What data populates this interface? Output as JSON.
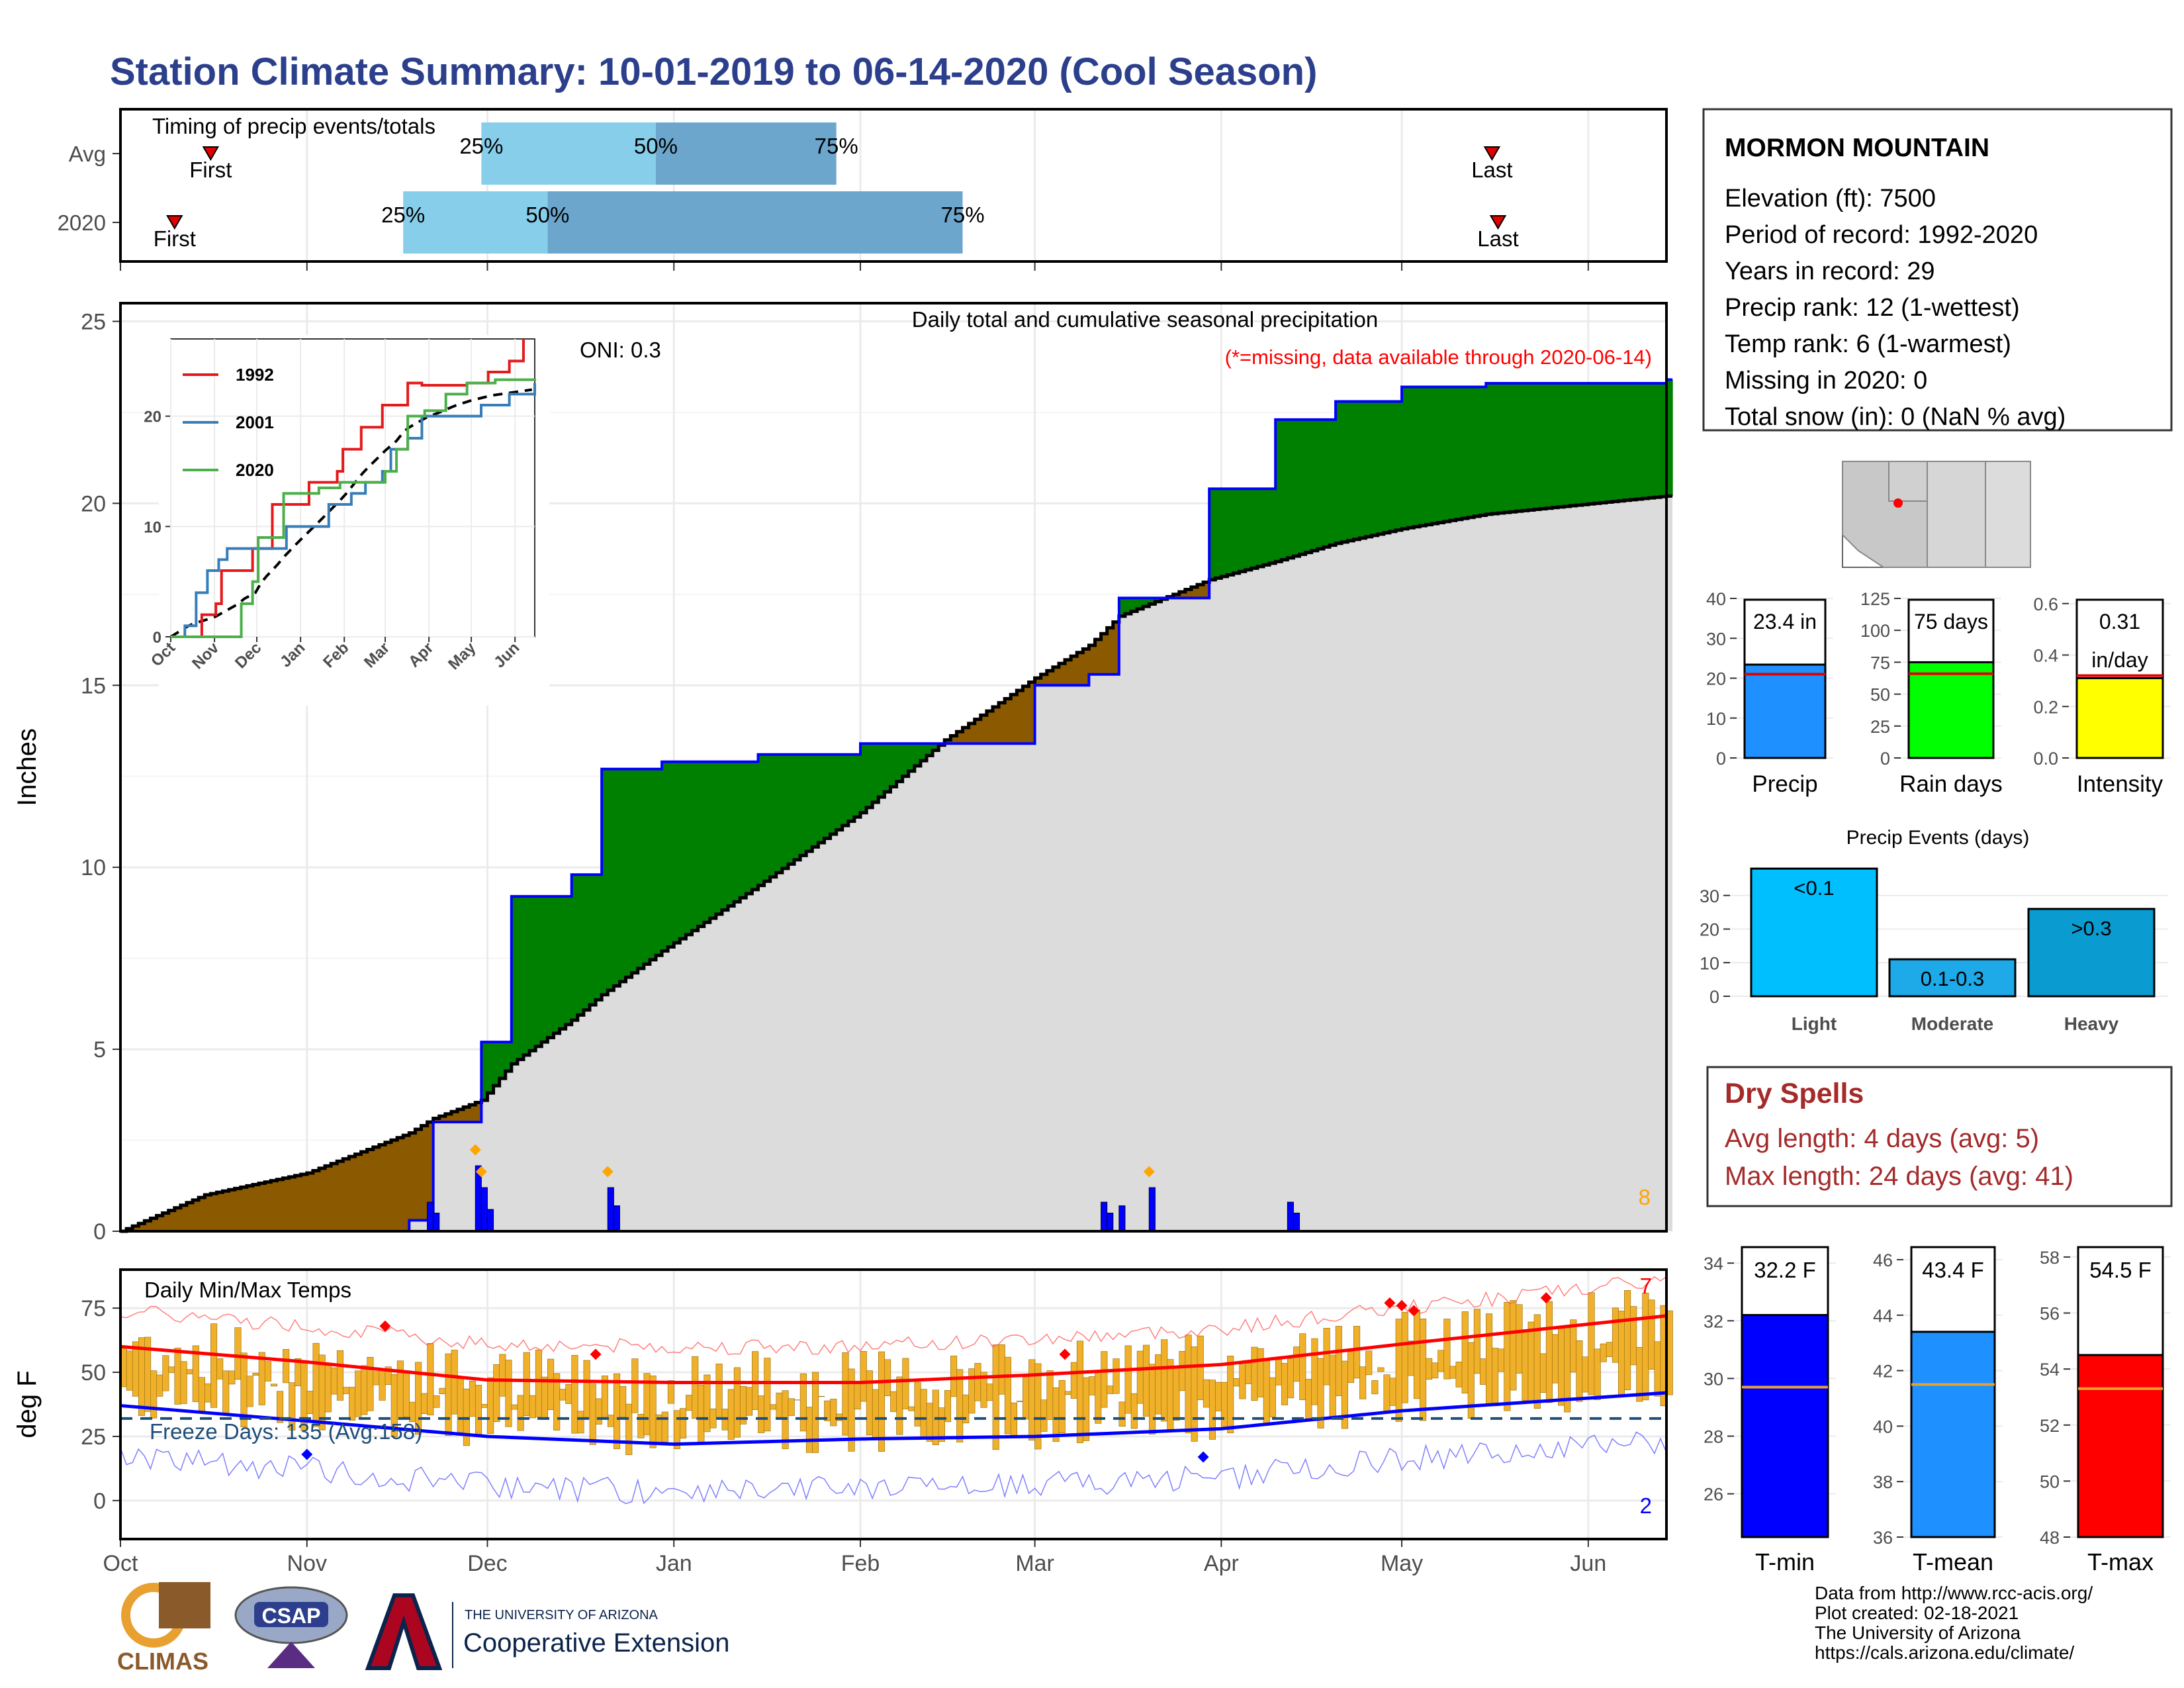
{
  "title": "Station Climate Summary: 10-01-2019 to 06-14-2020 (Cool Season)",
  "colors": {
    "title": "#2B3F8C",
    "precip_green": "#008000",
    "precip_brown": "#8B5A00",
    "normal_fill": "#DCDCDC",
    "obs_line": "#0000FF",
    "quartile_light": "#87CEEB",
    "quartile_dark": "#6CA6CD",
    "temp_bar": "#F0B02A",
    "tmax_line": "#FF0000",
    "tmin_line": "#0000FF",
    "dry_spell": "#A52A2A"
  },
  "timing": {
    "label": "Timing of precip events/totals",
    "rows": [
      {
        "name": "Avg",
        "first": "First",
        "last": "Last",
        "p25": "25%",
        "p50": "50%",
        "p75": "75%"
      },
      {
        "name": "2020",
        "first": "First",
        "last": "Last",
        "p25": "25%",
        "p50": "50%",
        "p75": "75%"
      }
    ]
  },
  "main": {
    "ylabel": "Inches",
    "oni": "ONI: 0.3",
    "caption": "Daily total and cumulative seasonal precipitation",
    "missing_note": "(*=missing, data available through 2020-06-14)",
    "corner_count": "8",
    "y_ticks": [
      "0",
      "5",
      "10",
      "15",
      "20",
      "25"
    ]
  },
  "inset": {
    "legend": [
      "1992",
      "2001",
      "2020"
    ],
    "y_ticks": [
      "0",
      "10",
      "20"
    ],
    "x_ticks": [
      "Oct",
      "Nov",
      "Dec",
      "Jan",
      "Feb",
      "Mar",
      "Apr",
      "May",
      "Jun"
    ]
  },
  "temp": {
    "label": "Daily Min/Max Temps",
    "ylabel": "deg F",
    "freeze": "Freeze Days: 135 (Avg:158)",
    "max_count": "7",
    "min_count": "2",
    "y_ticks": [
      "0",
      "25",
      "50",
      "75"
    ]
  },
  "x_months": [
    "Oct",
    "Nov",
    "Dec",
    "Jan",
    "Feb",
    "Mar",
    "Apr",
    "May",
    "Jun"
  ],
  "station": {
    "name": "MORMON MOUNTAIN",
    "lines": [
      "Elevation (ft): 7500",
      "Period of record: 1992-2020",
      "Years in record: 29",
      "Precip rank: 12 (1-wettest)",
      "Temp rank: 6 (1-warmest)",
      "Missing in 2020: 0",
      "Total snow (in): 0 (NaN % avg)"
    ]
  },
  "summary_bars": [
    {
      "label": "Precip",
      "value_text": "23.4 in",
      "ticks": [
        "0",
        "10",
        "20",
        "30",
        "40"
      ],
      "color": "#1E90FF"
    },
    {
      "label": "Rain days",
      "value_text": "75 days",
      "ticks": [
        "0",
        "25",
        "50",
        "75",
        "100",
        "125"
      ],
      "color": "#00FF00"
    },
    {
      "label": "Intensity",
      "value_text": "0.31",
      "value_unit": "in/day",
      "ticks": [
        "0.0",
        "0.2",
        "0.4",
        "0.6"
      ],
      "color": "#FFFF00"
    }
  ],
  "events": {
    "title": "Precip Events (days)",
    "y_ticks": [
      "0",
      "10",
      "20",
      "30"
    ],
    "bars": [
      {
        "category": "Light",
        "label": "<0.1",
        "color": "#00BFFF"
      },
      {
        "category": "Moderate",
        "label": "0.1-0.3",
        "color": "#1EA9E8"
      },
      {
        "category": "Heavy",
        "label": ">0.3",
        "color": "#0A9BD0"
      }
    ]
  },
  "dry": {
    "title": "Dry Spells",
    "avg": "Avg length: 4 days (avg: 5)",
    "max": "Max length: 24 days (avg: 41)"
  },
  "temp_bars": [
    {
      "label": "T-min",
      "value_text": "32.2 F",
      "ticks": [
        "26",
        "28",
        "30",
        "32",
        "34"
      ],
      "color": "#0000FF"
    },
    {
      "label": "T-mean",
      "value_text": "43.4 F",
      "ticks": [
        "36",
        "38",
        "40",
        "42",
        "44",
        "46"
      ],
      "color": "#1E90FF"
    },
    {
      "label": "T-max",
      "value_text": "54.5 F",
      "ticks": [
        "48",
        "50",
        "52",
        "54",
        "56",
        "58"
      ],
      "color": "#FF0000"
    }
  ],
  "footer": [
    "Data from http://www.rcc-acis.org/",
    "Plot created: 02-18-2021",
    "The University of Arizona",
    "https://cals.arizona.edu/climate/"
  ],
  "logos": {
    "climas": "CLIMAS",
    "csap": "CSAP",
    "ua_small": "THE UNIVERSITY OF ARIZONA",
    "ua_big": "Cooperative Extension"
  },
  "chart_data": [
    {
      "type": "line",
      "name": "cumulative precipitation",
      "x_unit": "date",
      "x": [
        "2019-10-01",
        "2019-10-15",
        "2019-11-01",
        "2019-11-18",
        "2019-11-22",
        "2019-11-30",
        "2019-12-05",
        "2019-12-15",
        "2019-12-20",
        "2019-12-30",
        "2020-01-15",
        "2020-02-01",
        "2020-02-15",
        "2020-03-01",
        "2020-03-10",
        "2020-03-15",
        "2020-03-30",
        "2020-04-10",
        "2020-04-20",
        "2020-05-01",
        "2020-05-15",
        "2020-06-14"
      ],
      "cumulative_2020": [
        0,
        0,
        0,
        0.3,
        3.0,
        5.2,
        9.2,
        9.8,
        12.7,
        12.9,
        13.1,
        13.4,
        13.4,
        15.0,
        15.3,
        17.4,
        20.4,
        22.3,
        22.8,
        23.2,
        23.3,
        23.4
      ],
      "cumulative_avg": [
        0,
        1.0,
        1.6,
        2.7,
        3.1,
        3.6,
        4.6,
        5.8,
        6.5,
        7.7,
        9.5,
        11.5,
        13.5,
        15.2,
        16.1,
        16.9,
        17.9,
        18.4,
        18.9,
        19.3,
        19.7,
        20.2
      ],
      "ylim": [
        0,
        25.5
      ],
      "ylabel": "Inches"
    },
    {
      "type": "bar",
      "name": "daily precipitation",
      "x": [
        "2019-11-21",
        "2019-11-22",
        "2019-11-29",
        "2019-11-30",
        "2019-12-01",
        "2019-12-21",
        "2019-12-22",
        "2020-03-12",
        "2020-03-13",
        "2020-03-15",
        "2020-03-20",
        "2020-04-12",
        "2020-04-13"
      ],
      "values": [
        0.8,
        0.5,
        1.8,
        1.2,
        0.6,
        1.2,
        0.7,
        0.8,
        0.5,
        0.7,
        1.2,
        0.8,
        0.5
      ]
    },
    {
      "type": "line",
      "name": "daily temperature",
      "x": [
        "2019-10-01",
        "2019-11-01",
        "2019-12-01",
        "2020-01-01",
        "2020-02-01",
        "2020-03-01",
        "2020-04-01",
        "2020-05-01",
        "2020-06-14"
      ],
      "avg_tmax": [
        60,
        54,
        47,
        46,
        46,
        49,
        53,
        61,
        72
      ],
      "avg_tmin": [
        37,
        31,
        25,
        22,
        24,
        25,
        28,
        35,
        42
      ],
      "ylim": [
        -15,
        90
      ],
      "ylabel": "deg F"
    },
    {
      "type": "bar",
      "name": "seasonal totals",
      "categories": [
        "Precip",
        "Rain days",
        "Intensity"
      ],
      "values": [
        23.4,
        75,
        0.31
      ],
      "averages": [
        21,
        66,
        0.32
      ]
    },
    {
      "type": "bar",
      "name": "precip events",
      "categories": [
        "Light",
        "Moderate",
        "Heavy"
      ],
      "values": [
        38,
        11,
        26
      ]
    },
    {
      "type": "bar",
      "name": "seasonal temperatures",
      "categories": [
        "T-min",
        "T-mean",
        "T-max"
      ],
      "values": [
        32.2,
        43.4,
        54.5
      ],
      "averages": [
        29.7,
        41.5,
        53.3
      ]
    }
  ]
}
